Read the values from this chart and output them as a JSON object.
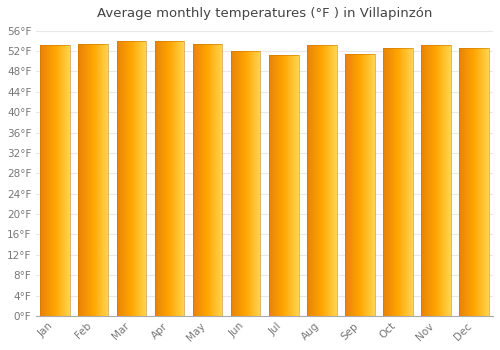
{
  "title": "Average monthly temperatures (°F ) in Villapinzón",
  "months": [
    "Jan",
    "Feb",
    "Mar",
    "Apr",
    "May",
    "Jun",
    "Jul",
    "Aug",
    "Sep",
    "Oct",
    "Nov",
    "Dec"
  ],
  "values": [
    53.1,
    53.4,
    54.0,
    54.0,
    53.4,
    52.0,
    51.3,
    53.1,
    51.5,
    52.5,
    53.1,
    52.5
  ],
  "bar_color_left": "#E8820A",
  "bar_color_center": "#FFA500",
  "bar_color_right": "#FFD44E",
  "background_color": "#ffffff",
  "grid_color": "#e8e8e8",
  "ytick_min": 0,
  "ytick_max": 56,
  "ytick_step": 4,
  "title_fontsize": 9.5,
  "tick_fontsize": 7.5
}
